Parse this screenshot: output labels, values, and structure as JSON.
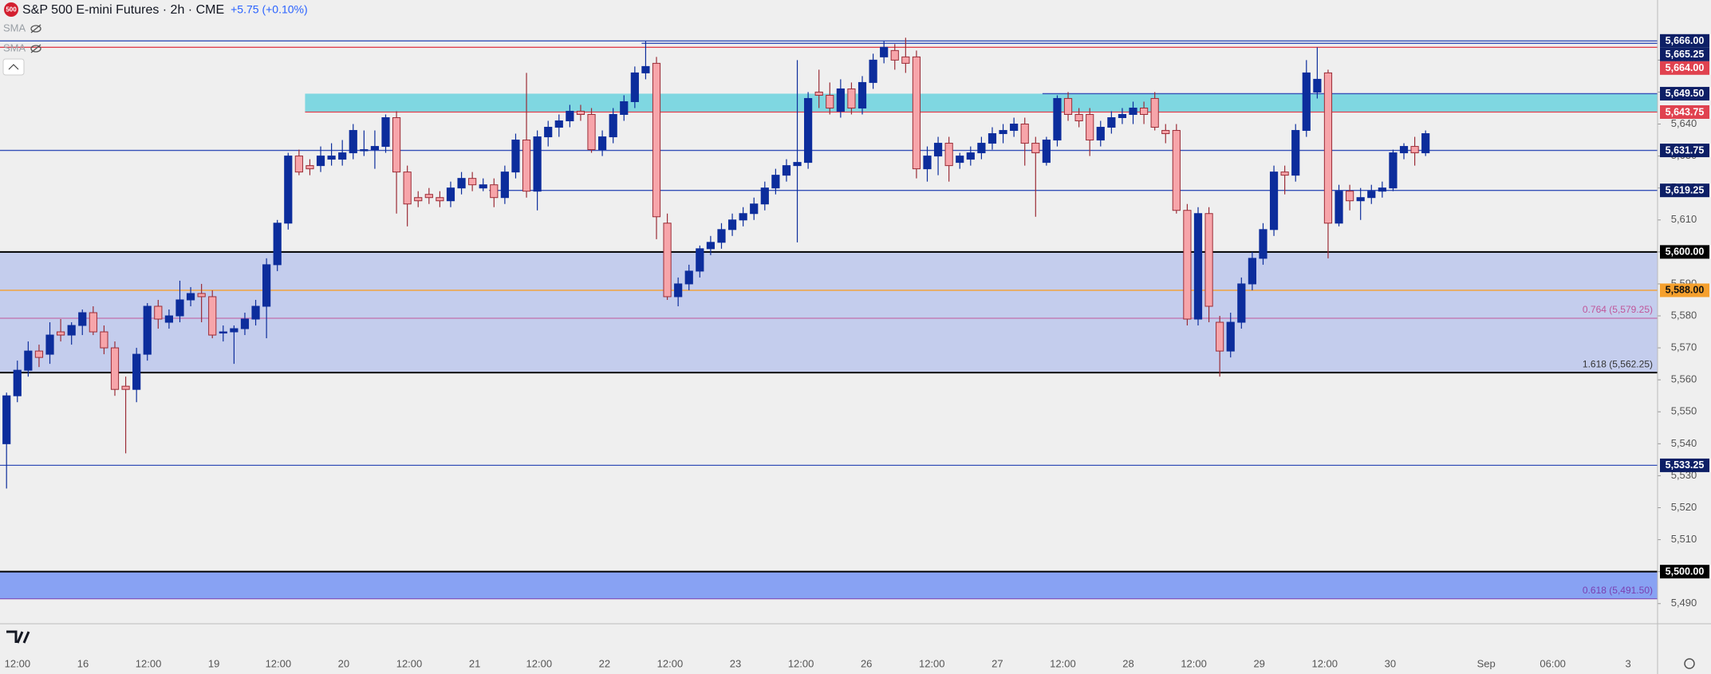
{
  "chart_data": {
    "type": "candlestick",
    "symbol_badge": "500",
    "title": "S&P 500 E-mini Futures · 2h · CME",
    "change": "+5.75 (+0.10%)",
    "indicators": [
      "SMA",
      "SMA"
    ],
    "up_color": "#0c2d9c",
    "down_color": "#f7a5aa",
    "down_edge": "#9b2c36",
    "open": [
      5540,
      5555,
      5563,
      5569,
      5568,
      5575,
      5574,
      5577,
      5581,
      5575,
      5570,
      5558,
      5557,
      5568,
      5583,
      5578,
      5580,
      5585,
      5587,
      5586,
      5575,
      5575,
      5576,
      5579,
      5583,
      5596,
      5609,
      5630,
      5627,
      5627,
      5629,
      5629,
      5631,
      5632,
      5632,
      5633,
      5642,
      5625,
      5617,
      5618,
      5617,
      5616,
      5620,
      5623,
      5620,
      5621,
      5617,
      5625,
      5635,
      5619,
      5636,
      5639,
      5641,
      5644,
      5643,
      5632,
      5636,
      5643,
      5647,
      5656,
      5659,
      5609,
      5586,
      5590,
      5594,
      5601,
      5603,
      5607,
      5610,
      5612,
      5615,
      5620,
      5624,
      5627,
      5628,
      5650,
      5649,
      5644,
      5651,
      5645,
      5653,
      5661,
      5663,
      5661,
      5661,
      5626,
      5630,
      5634,
      5628,
      5629,
      5631,
      5634,
      5637,
      5638,
      5640,
      5634,
      5628,
      5635,
      5648,
      5643,
      5643,
      5635,
      5639,
      5642,
      5643,
      5645,
      5648,
      5638,
      5638,
      5613,
      5579,
      5612,
      5578,
      5569,
      5578,
      5590,
      5598,
      5607,
      5625,
      5624,
      5638,
      5650,
      5656,
      5609,
      5619,
      5616,
      5617,
      5619,
      5620,
      5631,
      5633,
      5631
    ],
    "high": [
      5556,
      5566,
      5572,
      5571,
      5578,
      5579,
      5578,
      5582,
      5583,
      5577,
      5572,
      5561,
      5570,
      5584,
      5585,
      5582,
      5591,
      5589,
      5590,
      5588,
      5577,
      5577,
      5581,
      5585,
      5598,
      5610,
      5631,
      5632,
      5629,
      5633,
      5634,
      5635,
      5640,
      5638,
      5638,
      5643,
      5644,
      5627,
      5619,
      5620,
      5619,
      5622,
      5625,
      5625,
      5623,
      5623,
      5627,
      5637,
      5656,
      5638,
      5641,
      5643,
      5646,
      5646,
      5645,
      5638,
      5645,
      5649,
      5658,
      5666,
      5661,
      5612,
      5592,
      5596,
      5602,
      5605,
      5609,
      5612,
      5614,
      5617,
      5622,
      5626,
      5629,
      5660,
      5650,
      5657,
      5653,
      5654,
      5653,
      5655,
      5662,
      5666,
      5665,
      5667,
      5663,
      5633,
      5636,
      5636,
      5631,
      5633,
      5636,
      5639,
      5640,
      5642,
      5642,
      5636,
      5636,
      5649,
      5650,
      5645,
      5645,
      5641,
      5644,
      5645,
      5647,
      5647,
      5650,
      5640,
      5640,
      5615,
      5614,
      5614,
      5580,
      5581,
      5592,
      5600,
      5609,
      5627,
      5627,
      5640,
      5660,
      5664,
      5657,
      5621,
      5621,
      5620,
      5621,
      5622,
      5632,
      5634,
      5636,
      5638
    ],
    "low": [
      5526,
      5553,
      5561,
      5564,
      5565,
      5572,
      5571,
      5574,
      5574,
      5568,
      5555,
      5537,
      5553,
      5566,
      5576,
      5576,
      5578,
      5583,
      5578,
      5573,
      5572,
      5565,
      5574,
      5577,
      5573,
      5594,
      5607,
      5624,
      5624,
      5625,
      5627,
      5627,
      5629,
      5630,
      5626,
      5631,
      5612,
      5608,
      5614,
      5615,
      5614,
      5614,
      5618,
      5619,
      5619,
      5614,
      5615,
      5623,
      5617,
      5613,
      5633,
      5636,
      5639,
      5641,
      5631,
      5630,
      5634,
      5641,
      5645,
      5654,
      5604,
      5585,
      5583,
      5588,
      5592,
      5599,
      5601,
      5605,
      5608,
      5610,
      5613,
      5618,
      5622,
      5603,
      5626,
      5645,
      5643,
      5642,
      5643,
      5643,
      5651,
      5659,
      5657,
      5656,
      5623,
      5622,
      5624,
      5622,
      5626,
      5627,
      5629,
      5632,
      5634,
      5636,
      5627,
      5611,
      5627,
      5633,
      5641,
      5639,
      5630,
      5633,
      5637,
      5640,
      5640,
      5640,
      5638,
      5634,
      5612,
      5577,
      5577,
      5578,
      5561,
      5567,
      5576,
      5588,
      5596,
      5605,
      5618,
      5622,
      5636,
      5648,
      5598,
      5608,
      5613,
      5610,
      5615,
      5617,
      5619,
      5629,
      5627,
      5630
    ],
    "close": [
      5555,
      5563,
      5569,
      5567,
      5574,
      5574,
      5577,
      5581,
      5575,
      5570,
      5557,
      5557,
      5568,
      5583,
      5579,
      5580,
      5585,
      5587,
      5586,
      5574,
      5575,
      5576,
      5579,
      5583,
      5596,
      5609,
      5630,
      5625,
      5626,
      5630,
      5630,
      5631,
      5638,
      5632,
      5633,
      5642,
      5625,
      5615,
      5616,
      5617,
      5616,
      5620,
      5623,
      5621,
      5621,
      5617,
      5625,
      5635,
      5619,
      5636,
      5639,
      5641,
      5644,
      5643,
      5632,
      5636,
      5643,
      5647,
      5656,
      5658,
      5611,
      5586,
      5590,
      5594,
      5601,
      5603,
      5607,
      5610,
      5612,
      5615,
      5620,
      5624,
      5627,
      5628,
      5648,
      5649,
      5645,
      5651,
      5645,
      5653,
      5660,
      5664,
      5660,
      5659,
      5626,
      5630,
      5634,
      5627,
      5630,
      5631,
      5634,
      5637,
      5638,
      5640,
      5634,
      5631,
      5635,
      5648,
      5643,
      5641,
      5635,
      5639,
      5642,
      5643,
      5645,
      5643,
      5639,
      5637,
      5613,
      5579,
      5612,
      5583,
      5569,
      5578,
      5590,
      5598,
      5607,
      5625,
      5624,
      5638,
      5656,
      5654,
      5609,
      5619,
      5616,
      5617,
      5619,
      5620,
      5631,
      5633,
      5631,
      5637
    ],
    "ylim": [
      5483.7,
      5678.8
    ],
    "yticks": [
      {
        "value": 5490,
        "label": "5,490"
      },
      {
        "value": 5500,
        "label": "5,500"
      },
      {
        "value": 5510,
        "label": "5,510"
      },
      {
        "value": 5520,
        "label": "5,520"
      },
      {
        "value": 5530,
        "label": "5,530"
      },
      {
        "value": 5540,
        "label": "5,540"
      },
      {
        "value": 5550,
        "label": "5,550"
      },
      {
        "value": 5560,
        "label": "5,560"
      },
      {
        "value": 5570,
        "label": "5,570"
      },
      {
        "value": 5580,
        "label": "5,580"
      },
      {
        "value": 5590,
        "label": "5,590"
      },
      {
        "value": 5600,
        "label": "5,600"
      },
      {
        "value": 5610,
        "label": "5,610"
      },
      {
        "value": 5620,
        "label": "5,620"
      },
      {
        "value": 5630,
        "label": "5,630"
      },
      {
        "value": 5640,
        "label": "5,640"
      },
      {
        "value": 5650,
        "label": "5,650"
      },
      {
        "value": 5660,
        "label": "5,660"
      }
    ],
    "levels": [
      {
        "value": 5666,
        "label": "5,666.00",
        "color": "#0d1f66"
      },
      {
        "value": 5665.25,
        "label": "5,665.25",
        "color": "#0d1f66"
      },
      {
        "value": 5664,
        "label": "5,664.00",
        "color": "#e0424f"
      },
      {
        "value": 5649.5,
        "label": "5,649.50",
        "color": "#0d1f66"
      },
      {
        "value": 5643.75,
        "label": "5,643.75",
        "color": "#e0424f"
      },
      {
        "value": 5631.75,
        "label": "5,631.75",
        "color": "#0d1f66"
      },
      {
        "value": 5619.25,
        "label": "5,619.25",
        "color": "#0d1f66"
      },
      {
        "value": 5600,
        "label": "5,600.00",
        "color": "#000000"
      },
      {
        "value": 5588,
        "label": "5,588.00",
        "color": "#f5a02e"
      },
      {
        "value": 5533.25,
        "label": "5,533.25",
        "color": "#0d1f66"
      },
      {
        "value": 5500,
        "label": "5,500.00",
        "color": "#000000"
      }
    ],
    "fibs": [
      {
        "value": 5579.25,
        "label": "0.764 (5,579.25)",
        "color": "#c0569a"
      },
      {
        "value": 5562.25,
        "label": "1.618 (5,562.25)",
        "color": "#000000"
      },
      {
        "value": 5491.5,
        "label": "0.618 (5,491.50)",
        "color": "#7a3fb0"
      }
    ],
    "xtick_labels": [
      "12:00",
      "16",
      "12:00",
      "19",
      "12:00",
      "20",
      "12:00",
      "21",
      "12:00",
      "22",
      "12:00",
      "23",
      "12:00",
      "26",
      "12:00",
      "27",
      "12:00",
      "28",
      "12:00",
      "29",
      "12:00",
      "30",
      "Sep",
      "06:00",
      "3"
    ]
  }
}
